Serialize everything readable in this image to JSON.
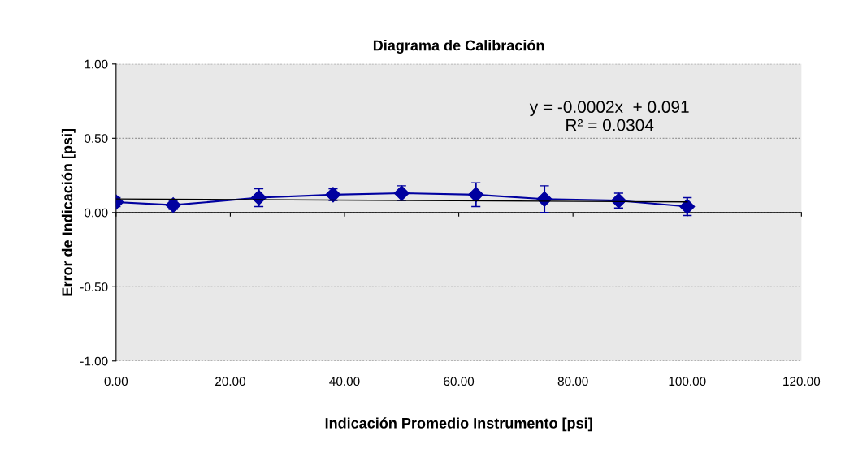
{
  "chart_data": {
    "type": "line",
    "title": "Diagrama de Calibración",
    "xlabel": "Indicación Promedio Instrumento [psi]",
    "ylabel": "Error de Indicación [psi]",
    "series": [
      {
        "color": "#0000a0",
        "marker": "diamond",
        "x": [
          0,
          10,
          25,
          38,
          50,
          63,
          75,
          88,
          100
        ],
        "values": [
          0.07,
          0.05,
          0.1,
          0.12,
          0.13,
          0.12,
          0.09,
          0.08,
          0.04
        ],
        "errors": [
          0.03,
          0.03,
          0.06,
          0.04,
          0.05,
          0.08,
          0.09,
          0.05,
          0.06
        ]
      },
      {
        "color": "#000000",
        "marker": "none",
        "x": [
          0,
          100
        ],
        "values": [
          0.091,
          0.071
        ]
      }
    ],
    "annotations": [
      "y = -0.0002x  + 0.091\nR² = 0.0304"
    ],
    "xlim": [
      0,
      120
    ],
    "xticks": [
      {
        "value": 0,
        "label": "0.00"
      },
      {
        "value": 20,
        "label": "20.00"
      },
      {
        "value": 40,
        "label": "40.00"
      },
      {
        "value": 60,
        "label": "60.00"
      },
      {
        "value": 80,
        "label": "80.00"
      },
      {
        "value": 100,
        "label": "100.00"
      },
      {
        "value": 120,
        "label": "120.00"
      }
    ],
    "ylim": [
      -1,
      1
    ],
    "yticks": [
      {
        "value": -1,
        "label": "-1.00"
      },
      {
        "value": -0.5,
        "label": "-0.50"
      },
      {
        "value": 0,
        "label": "0.00"
      },
      {
        "value": 0.5,
        "label": "0.50"
      },
      {
        "value": 1,
        "label": "1.00"
      }
    ],
    "grid": "y"
  }
}
